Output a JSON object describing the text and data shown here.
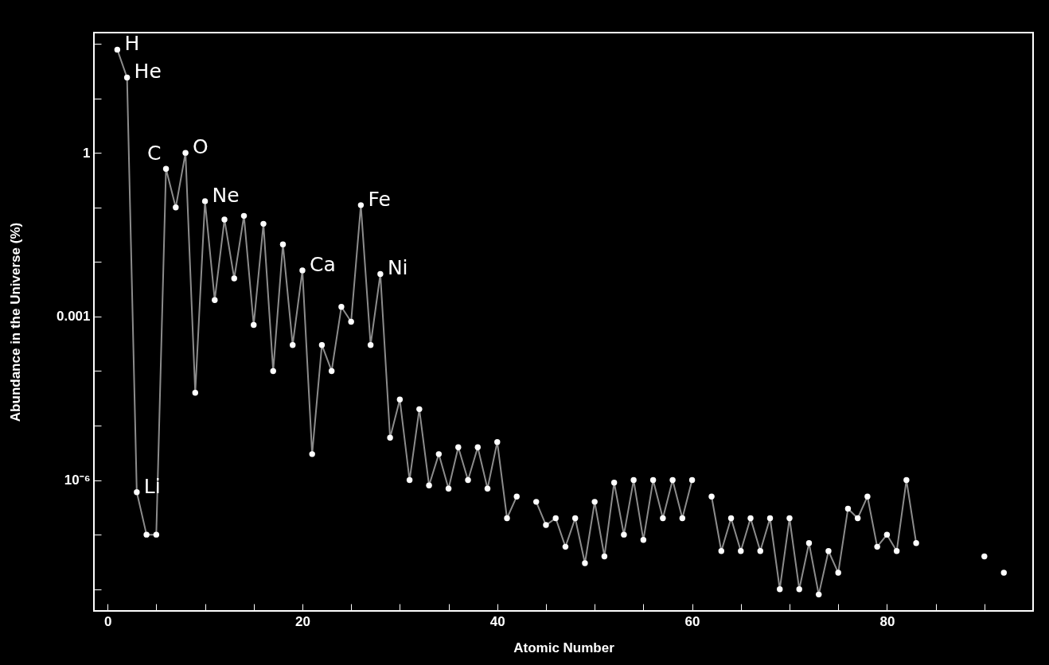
{
  "chart_data": {
    "type": "line",
    "xlabel": "Atomic Number",
    "ylabel": "Abundance in the Universe (%)",
    "x": [
      1,
      2,
      3,
      4,
      5,
      6,
      7,
      8,
      9,
      10,
      11,
      12,
      13,
      14,
      15,
      16,
      17,
      18,
      19,
      20,
      21,
      22,
      23,
      24,
      25,
      26,
      27,
      28,
      29,
      30,
      31,
      32,
      33,
      34,
      35,
      36,
      37,
      38,
      39,
      40,
      41,
      42,
      43,
      44,
      45,
      46,
      47,
      48,
      49,
      50,
      51,
      52,
      53,
      54,
      55,
      56,
      57,
      58,
      59,
      60,
      61,
      62,
      63,
      64,
      65,
      66,
      67,
      68,
      69,
      70,
      71,
      72,
      73,
      74,
      75,
      76,
      77,
      78,
      79,
      80,
      81,
      82,
      83,
      84,
      85,
      86,
      87,
      88,
      89,
      90,
      91,
      92
    ],
    "series": [
      {
        "color": "#ffffff",
        "values": [
          78,
          24,
          6e-07,
          1e-07,
          1e-07,
          0.51,
          0.1,
          1.0,
          4e-05,
          0.13,
          0.002,
          0.06,
          0.005,
          0.07,
          0.0007,
          0.05,
          0.0001,
          0.021,
          0.0003,
          0.007,
          3e-06,
          0.0003,
          0.0001,
          0.0015,
          0.0008,
          0.11,
          0.0003,
          0.006,
          6e-06,
          3e-05,
          1e-06,
          2e-05,
          8e-07,
          3e-06,
          7e-07,
          4e-06,
          1e-06,
          4e-06,
          7e-07,
          5e-06,
          2e-07,
          5e-07,
          null,
          4e-07,
          1.5e-07,
          2e-07,
          6e-08,
          2e-07,
          3e-08,
          4e-07,
          4e-08,
          9e-07,
          1e-07,
          1e-06,
          8e-08,
          1e-06,
          2e-07,
          1e-06,
          2e-07,
          1e-06,
          null,
          5e-07,
          5e-08,
          2e-07,
          5e-08,
          2e-07,
          5e-08,
          2e-07,
          1e-08,
          2e-07,
          1e-08,
          7e-08,
          8e-09,
          5e-08,
          2e-08,
          3e-07,
          2e-07,
          5e-07,
          6e-08,
          1e-07,
          5e-08,
          1e-06,
          7e-08,
          null,
          null,
          null,
          null,
          null,
          null,
          4e-08,
          null,
          2e-08
        ]
      }
    ],
    "marker": "circle",
    "log": "y",
    "xlim": [
      -1.4,
      95
    ],
    "xticks": [
      0,
      {
        "value": 5,
        "label": null
      },
      {
        "value": 10,
        "label": null
      },
      {
        "value": 15,
        "label": null
      },
      20,
      {
        "value": 25,
        "label": null
      },
      {
        "value": 30,
        "label": null
      },
      {
        "value": 35,
        "label": null
      },
      40,
      {
        "value": 45,
        "label": null
      },
      {
        "value": 50,
        "label": null
      },
      {
        "value": 55,
        "label": null
      },
      60,
      {
        "value": 65,
        "label": null
      },
      {
        "value": 70,
        "label": null
      },
      {
        "value": 75,
        "label": null
      },
      80,
      {
        "value": 85,
        "label": null
      },
      {
        "value": 90,
        "label": null
      }
    ],
    "ylim": [
      4e-09,
      160
    ],
    "yticks": [
      {
        "value": 100,
        "label": null
      },
      {
        "value": 10,
        "label": null
      },
      1,
      {
        "value": 0.1,
        "label": null
      },
      {
        "value": 0.01,
        "label": null
      },
      0.001,
      {
        "value": 0.0001,
        "label": null
      },
      {
        "value": 1e-05,
        "label": null
      },
      {
        "value": 1e-06,
        "label": "10⁻⁶"
      },
      {
        "value": 1e-07,
        "label": null
      },
      {
        "value": 1e-08,
        "label": null
      }
    ],
    "annotations": [
      {
        "text": "H",
        "x": 1,
        "y": 78
      },
      {
        "text": "He",
        "x": 2,
        "y": 24
      },
      {
        "text": "Li",
        "x": 3,
        "y": 6e-07
      },
      {
        "text": "C",
        "x": 6,
        "y": 0.51
      },
      {
        "text": "O",
        "x": 8,
        "y": 1.0
      },
      {
        "text": "Ne",
        "x": 10,
        "y": 0.13
      },
      {
        "text": "Ca",
        "x": 20,
        "y": 0.007
      },
      {
        "text": "Fe",
        "x": 26,
        "y": 0.11
      },
      {
        "text": "Ni",
        "x": 28,
        "y": 0.006
      }
    ]
  }
}
